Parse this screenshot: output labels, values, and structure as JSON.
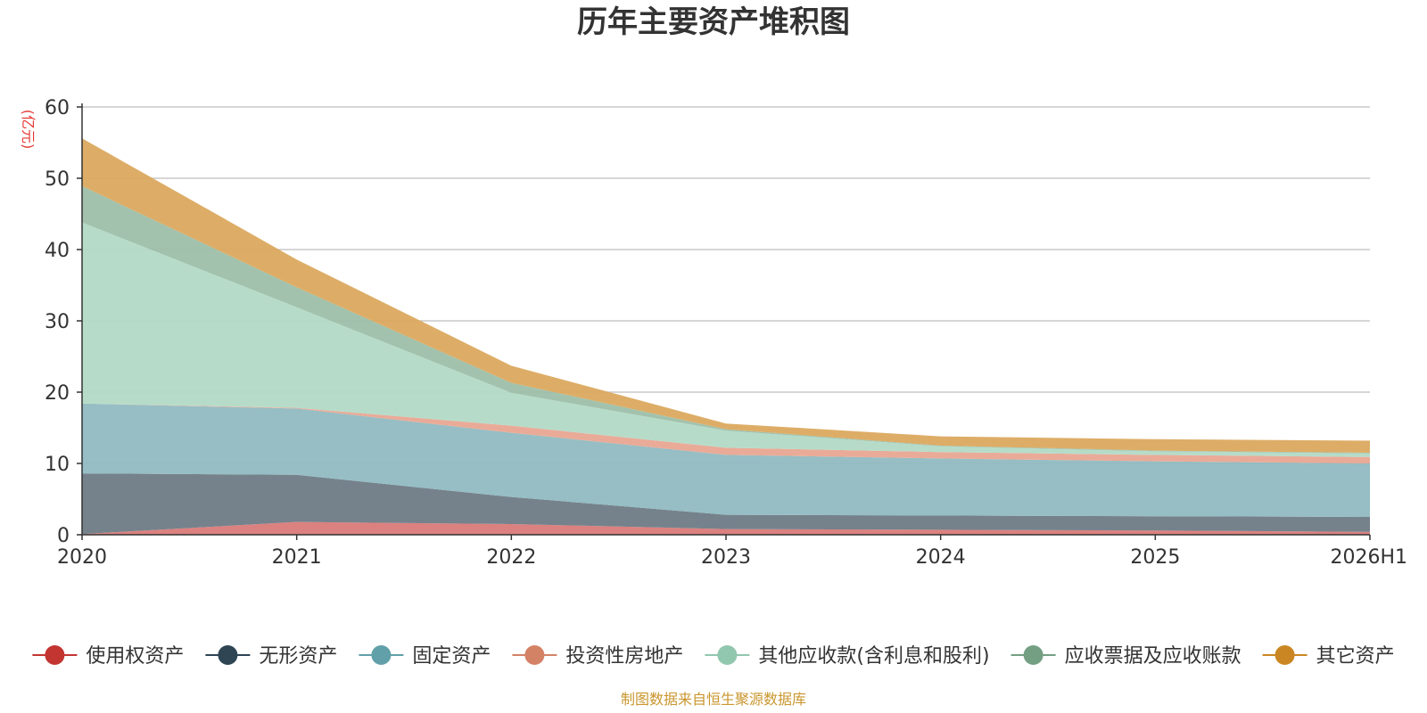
{
  "chart_data": {
    "type": "area",
    "stacked": true,
    "title": "历年主要资产堆积图",
    "unit_label": "(亿元)",
    "source": "制图数据来自恒生聚源数据库",
    "categories": [
      "2020",
      "2021",
      "2022",
      "2023",
      "2024",
      "2025",
      "2026H1"
    ],
    "ylim": [
      0,
      60
    ],
    "yticks": [
      0,
      10,
      20,
      30,
      40,
      50,
      60
    ],
    "grid": true,
    "legend_position": "bottom",
    "series": [
      {
        "name": "使用权资产",
        "color": "#c23531",
        "fill": "#d97a78",
        "values": [
          0.1,
          1.8,
          1.5,
          0.8,
          0.7,
          0.6,
          0.4
        ]
      },
      {
        "name": "无形资产",
        "color": "#2f4554",
        "fill": "#6e7b86",
        "values": [
          8.5,
          6.6,
          3.8,
          2.0,
          2.0,
          2.0,
          2.1
        ]
      },
      {
        "name": "固定资产",
        "color": "#61a0a8",
        "fill": "#90bac1",
        "values": [
          9.8,
          9.3,
          9.0,
          8.4,
          8.0,
          7.7,
          7.5
        ]
      },
      {
        "name": "投资性房地产",
        "color": "#d48265",
        "fill": "#e8a792",
        "values": [
          0.0,
          0.1,
          1.0,
          1.0,
          0.9,
          0.9,
          0.9
        ]
      },
      {
        "name": "其他应收款(含利息和股利)",
        "color": "#91c7ae",
        "fill": "#b2dac6",
        "values": [
          25.4,
          14.1,
          4.6,
          2.4,
          0.8,
          0.5,
          0.5
        ]
      },
      {
        "name": "应收票据及应收账款",
        "color": "#749f83",
        "fill": "#9dbfa9",
        "values": [
          5.1,
          2.8,
          1.4,
          0.2,
          0.1,
          0.1,
          0.1
        ]
      },
      {
        "name": "其它资产",
        "color": "#ca8622",
        "fill": "#dba95f",
        "values": [
          6.7,
          3.9,
          2.4,
          0.8,
          1.3,
          1.6,
          1.7
        ]
      }
    ]
  }
}
